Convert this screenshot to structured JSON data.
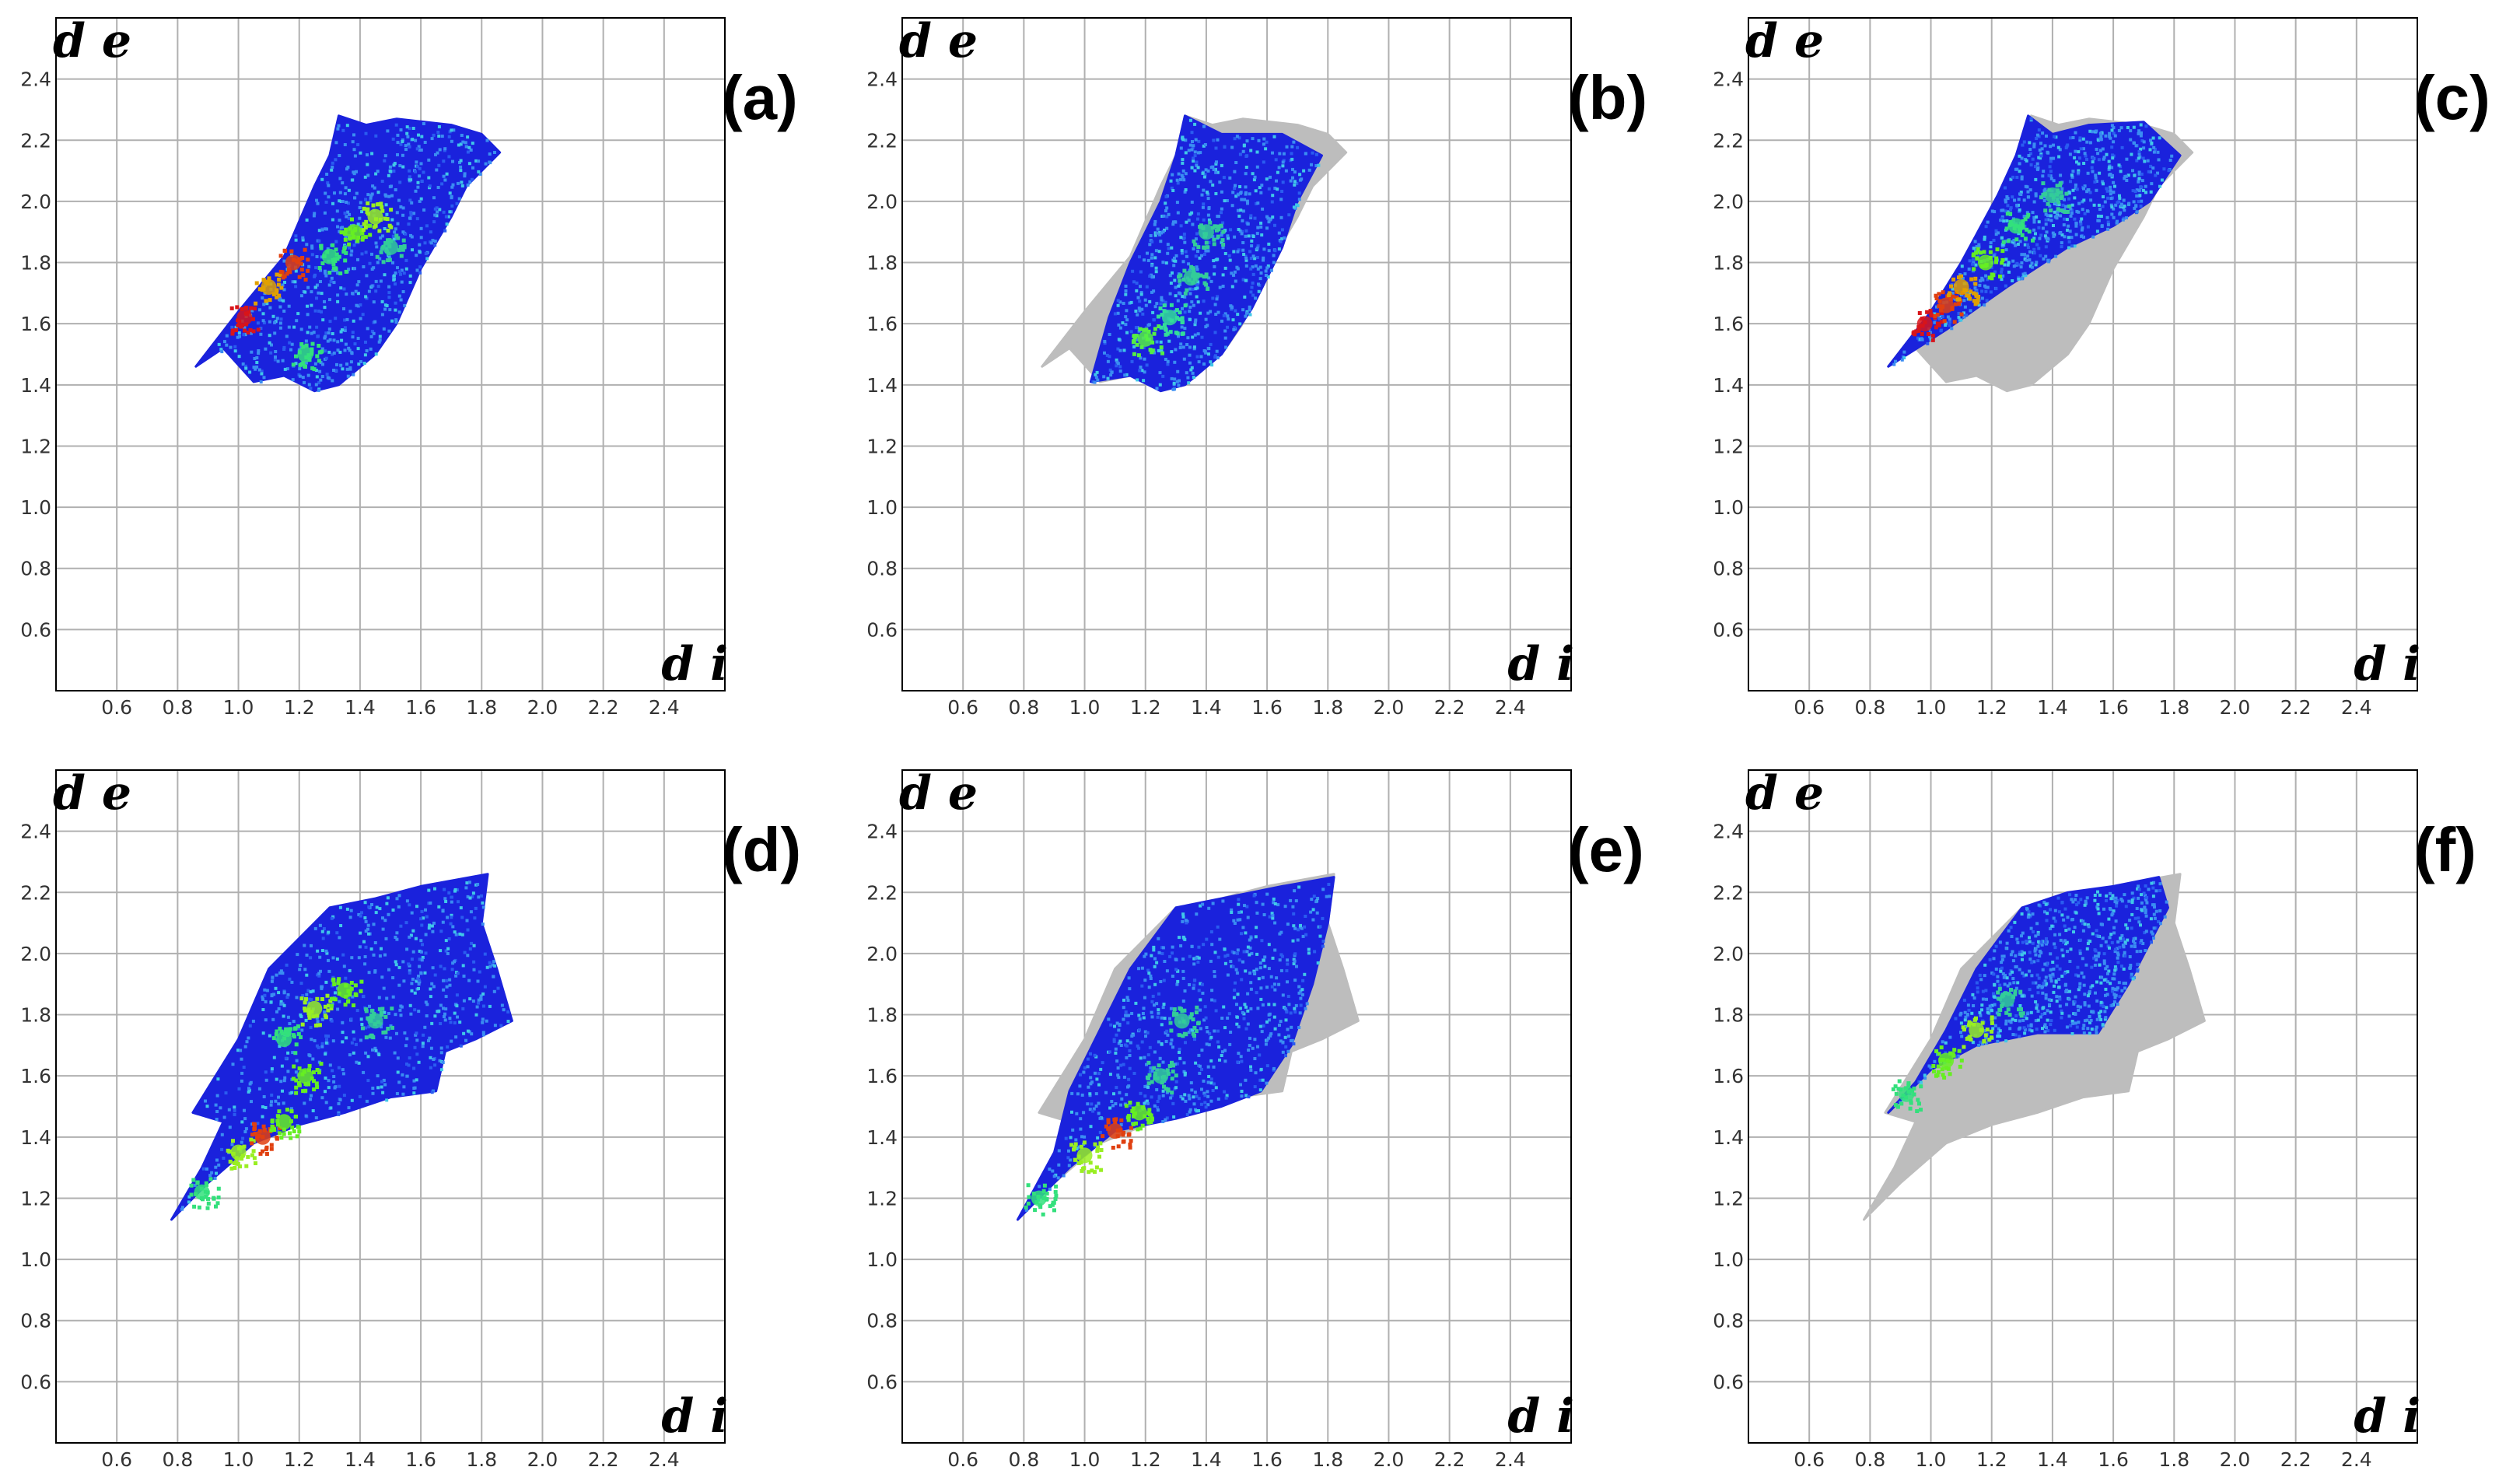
{
  "chart_data": [
    {
      "type": "scatter",
      "panel_label": "(a)",
      "xlabel": "d i",
      "ylabel": "d e",
      "xlim": [
        0.4,
        2.6
      ],
      "ylim": [
        0.4,
        2.6
      ],
      "x_ticks": [
        "0.6",
        "0.8",
        "1.0",
        "1.2",
        "1.4",
        "1.6",
        "1.8",
        "2.0",
        "2.2",
        "2.4"
      ],
      "y_ticks": [
        "0.6",
        "0.8",
        "1.0",
        "1.2",
        "1.4",
        "1.6",
        "1.8",
        "2.0",
        "2.2",
        "2.4"
      ],
      "grid": true,
      "background_region": [],
      "highlight_region": [
        [
          0.86,
          1.46
        ],
        [
          0.95,
          1.52
        ],
        [
          1.05,
          1.41
        ],
        [
          1.15,
          1.43
        ],
        [
          1.25,
          1.38
        ],
        [
          1.33,
          1.4
        ],
        [
          1.45,
          1.5
        ],
        [
          1.52,
          1.6
        ],
        [
          1.6,
          1.78
        ],
        [
          1.7,
          1.95
        ],
        [
          1.75,
          2.05
        ],
        [
          1.86,
          2.16
        ],
        [
          1.8,
          2.22
        ],
        [
          1.7,
          2.25
        ],
        [
          1.52,
          2.27
        ],
        [
          1.42,
          2.25
        ],
        [
          1.33,
          2.28
        ],
        [
          1.3,
          2.15
        ],
        [
          1.25,
          2.05
        ],
        [
          1.15,
          1.82
        ],
        [
          1.0,
          1.64
        ]
      ],
      "hotspots": [
        [
          1.02,
          1.62,
          "#d8141a"
        ],
        [
          1.1,
          1.72,
          "#e0a000"
        ],
        [
          1.18,
          1.8,
          "#e04010"
        ],
        [
          1.38,
          1.9,
          "#66ee22"
        ],
        [
          1.45,
          1.95,
          "#99ee22"
        ],
        [
          1.3,
          1.82,
          "#33e07c"
        ],
        [
          1.22,
          1.5,
          "#33e07c"
        ],
        [
          1.5,
          1.85,
          "#33cc99"
        ]
      ]
    },
    {
      "type": "scatter",
      "panel_label": "(b)",
      "xlabel": "d i",
      "ylabel": "d e",
      "xlim": [
        0.4,
        2.6
      ],
      "ylim": [
        0.4,
        2.6
      ],
      "x_ticks": [
        "0.6",
        "0.8",
        "1.0",
        "1.2",
        "1.4",
        "1.6",
        "1.8",
        "2.0",
        "2.2",
        "2.4"
      ],
      "y_ticks": [
        "0.6",
        "0.8",
        "1.0",
        "1.2",
        "1.4",
        "1.6",
        "1.8",
        "2.0",
        "2.2",
        "2.4"
      ],
      "grid": true,
      "background_region": [
        [
          0.86,
          1.46
        ],
        [
          0.95,
          1.52
        ],
        [
          1.05,
          1.41
        ],
        [
          1.15,
          1.43
        ],
        [
          1.25,
          1.38
        ],
        [
          1.33,
          1.4
        ],
        [
          1.45,
          1.5
        ],
        [
          1.52,
          1.6
        ],
        [
          1.6,
          1.78
        ],
        [
          1.7,
          1.95
        ],
        [
          1.75,
          2.05
        ],
        [
          1.86,
          2.16
        ],
        [
          1.8,
          2.22
        ],
        [
          1.7,
          2.25
        ],
        [
          1.52,
          2.27
        ],
        [
          1.42,
          2.25
        ],
        [
          1.33,
          2.28
        ],
        [
          1.3,
          2.15
        ],
        [
          1.25,
          2.05
        ],
        [
          1.15,
          1.82
        ],
        [
          1.0,
          1.64
        ]
      ],
      "highlight_region": [
        [
          1.02,
          1.41
        ],
        [
          1.15,
          1.43
        ],
        [
          1.25,
          1.38
        ],
        [
          1.33,
          1.4
        ],
        [
          1.45,
          1.5
        ],
        [
          1.55,
          1.65
        ],
        [
          1.65,
          1.85
        ],
        [
          1.7,
          2.0
        ],
        [
          1.78,
          2.15
        ],
        [
          1.65,
          2.22
        ],
        [
          1.45,
          2.22
        ],
        [
          1.33,
          2.28
        ],
        [
          1.3,
          2.15
        ],
        [
          1.25,
          2.0
        ],
        [
          1.15,
          1.8
        ],
        [
          1.08,
          1.62
        ]
      ],
      "hotspots": [
        [
          1.2,
          1.55,
          "#55ee44"
        ],
        [
          1.28,
          1.62,
          "#33dd99"
        ],
        [
          1.35,
          1.75,
          "#33cc99"
        ],
        [
          1.4,
          1.9,
          "#33cc99"
        ]
      ]
    },
    {
      "type": "scatter",
      "panel_label": "(c)",
      "xlabel": "d i",
      "ylabel": "d e",
      "xlim": [
        0.4,
        2.6
      ],
      "ylim": [
        0.4,
        2.6
      ],
      "x_ticks": [
        "0.6",
        "0.8",
        "1.0",
        "1.2",
        "1.4",
        "1.6",
        "1.8",
        "2.0",
        "2.2",
        "2.4"
      ],
      "y_ticks": [
        "0.6",
        "0.8",
        "1.0",
        "1.2",
        "1.4",
        "1.6",
        "1.8",
        "2.0",
        "2.2",
        "2.4"
      ],
      "grid": true,
      "background_region": [
        [
          0.86,
          1.46
        ],
        [
          0.95,
          1.52
        ],
        [
          1.05,
          1.41
        ],
        [
          1.15,
          1.43
        ],
        [
          1.25,
          1.38
        ],
        [
          1.33,
          1.4
        ],
        [
          1.45,
          1.5
        ],
        [
          1.52,
          1.6
        ],
        [
          1.6,
          1.78
        ],
        [
          1.7,
          1.95
        ],
        [
          1.75,
          2.05
        ],
        [
          1.86,
          2.16
        ],
        [
          1.8,
          2.22
        ],
        [
          1.7,
          2.25
        ],
        [
          1.52,
          2.27
        ],
        [
          1.42,
          2.25
        ],
        [
          1.33,
          2.28
        ],
        [
          1.3,
          2.15
        ],
        [
          1.25,
          2.05
        ],
        [
          1.15,
          1.82
        ],
        [
          1.0,
          1.64
        ]
      ],
      "highlight_region": [
        [
          0.86,
          1.46
        ],
        [
          1.05,
          1.58
        ],
        [
          1.25,
          1.72
        ],
        [
          1.45,
          1.85
        ],
        [
          1.6,
          1.92
        ],
        [
          1.72,
          2.0
        ],
        [
          1.82,
          2.15
        ],
        [
          1.7,
          2.26
        ],
        [
          1.52,
          2.25
        ],
        [
          1.4,
          2.22
        ],
        [
          1.32,
          2.28
        ],
        [
          1.28,
          2.15
        ],
        [
          1.22,
          2.02
        ],
        [
          1.1,
          1.8
        ],
        [
          1.0,
          1.64
        ]
      ],
      "hotspots": [
        [
          0.98,
          1.6,
          "#d8141a"
        ],
        [
          1.05,
          1.66,
          "#e04010"
        ],
        [
          1.1,
          1.72,
          "#e0a000"
        ],
        [
          1.18,
          1.8,
          "#66ee22"
        ],
        [
          1.28,
          1.92,
          "#33e07c"
        ],
        [
          1.4,
          2.02,
          "#33cc99"
        ]
      ]
    },
    {
      "type": "scatter",
      "panel_label": "(d)",
      "xlabel": "d i",
      "ylabel": "d e",
      "xlim": [
        0.4,
        2.6
      ],
      "ylim": [
        0.4,
        2.6
      ],
      "x_ticks": [
        "0.6",
        "0.8",
        "1.0",
        "1.2",
        "1.4",
        "1.6",
        "1.8",
        "2.0",
        "2.2",
        "2.4"
      ],
      "y_ticks": [
        "0.6",
        "0.8",
        "1.0",
        "1.2",
        "1.4",
        "1.6",
        "1.8",
        "2.0",
        "2.2",
        "2.4"
      ],
      "grid": true,
      "background_region": [],
      "highlight_region": [
        [
          0.78,
          1.13
        ],
        [
          0.9,
          1.25
        ],
        [
          1.05,
          1.38
        ],
        [
          1.2,
          1.44
        ],
        [
          1.35,
          1.48
        ],
        [
          1.5,
          1.53
        ],
        [
          1.65,
          1.55
        ],
        [
          1.68,
          1.68
        ],
        [
          1.78,
          1.72
        ],
        [
          1.9,
          1.78
        ],
        [
          1.85,
          1.95
        ],
        [
          1.8,
          2.1
        ],
        [
          1.82,
          2.26
        ],
        [
          1.6,
          2.22
        ],
        [
          1.45,
          2.18
        ],
        [
          1.3,
          2.15
        ],
        [
          1.1,
          1.95
        ],
        [
          1.0,
          1.72
        ],
        [
          0.85,
          1.48
        ],
        [
          0.95,
          1.45
        ],
        [
          0.88,
          1.3
        ]
      ],
      "hotspots": [
        [
          0.88,
          1.22,
          "#33e07c"
        ],
        [
          1.0,
          1.35,
          "#99ee22"
        ],
        [
          1.08,
          1.4,
          "#e04010"
        ],
        [
          1.15,
          1.45,
          "#66ee22"
        ],
        [
          1.22,
          1.6,
          "#66ee22"
        ],
        [
          1.25,
          1.82,
          "#99ee22"
        ],
        [
          1.35,
          1.88,
          "#66ee22"
        ],
        [
          1.15,
          1.72,
          "#33e07c"
        ],
        [
          1.45,
          1.78,
          "#33cc99"
        ]
      ]
    },
    {
      "type": "scatter",
      "panel_label": "(e)",
      "xlabel": "d i",
      "ylabel": "d e",
      "xlim": [
        0.4,
        2.6
      ],
      "ylim": [
        0.4,
        2.6
      ],
      "x_ticks": [
        "0.6",
        "0.8",
        "1.0",
        "1.2",
        "1.4",
        "1.6",
        "1.8",
        "2.0",
        "2.2",
        "2.4"
      ],
      "y_ticks": [
        "0.6",
        "0.8",
        "1.0",
        "1.2",
        "1.4",
        "1.6",
        "1.8",
        "2.0",
        "2.2",
        "2.4"
      ],
      "grid": true,
      "background_region": [
        [
          0.78,
          1.13
        ],
        [
          0.9,
          1.25
        ],
        [
          1.05,
          1.38
        ],
        [
          1.2,
          1.44
        ],
        [
          1.35,
          1.48
        ],
        [
          1.5,
          1.53
        ],
        [
          1.65,
          1.55
        ],
        [
          1.68,
          1.68
        ],
        [
          1.78,
          1.72
        ],
        [
          1.9,
          1.78
        ],
        [
          1.85,
          1.95
        ],
        [
          1.8,
          2.1
        ],
        [
          1.82,
          2.26
        ],
        [
          1.6,
          2.22
        ],
        [
          1.45,
          2.18
        ],
        [
          1.3,
          2.15
        ],
        [
          1.1,
          1.95
        ],
        [
          1.0,
          1.72
        ],
        [
          0.85,
          1.48
        ],
        [
          0.95,
          1.45
        ],
        [
          0.88,
          1.3
        ]
      ],
      "highlight_region": [
        [
          0.78,
          1.13
        ],
        [
          0.95,
          1.3
        ],
        [
          1.1,
          1.42
        ],
        [
          1.3,
          1.46
        ],
        [
          1.45,
          1.5
        ],
        [
          1.58,
          1.55
        ],
        [
          1.68,
          1.7
        ],
        [
          1.75,
          1.9
        ],
        [
          1.8,
          2.1
        ],
        [
          1.82,
          2.25
        ],
        [
          1.65,
          2.22
        ],
        [
          1.45,
          2.18
        ],
        [
          1.3,
          2.15
        ],
        [
          1.15,
          1.95
        ],
        [
          1.05,
          1.75
        ],
        [
          0.95,
          1.55
        ],
        [
          0.9,
          1.35
        ]
      ],
      "hotspots": [
        [
          0.85,
          1.2,
          "#33e07c"
        ],
        [
          1.0,
          1.34,
          "#99ee22"
        ],
        [
          1.1,
          1.42,
          "#e04010"
        ],
        [
          1.18,
          1.48,
          "#66ee22"
        ],
        [
          1.25,
          1.6,
          "#33cc99"
        ],
        [
          1.32,
          1.78,
          "#33cc99"
        ]
      ]
    },
    {
      "type": "scatter",
      "panel_label": "(f)",
      "xlabel": "d i",
      "ylabel": "d e",
      "xlim": [
        0.4,
        2.6
      ],
      "ylim": [
        0.4,
        2.6
      ],
      "x_ticks": [
        "0.6",
        "0.8",
        "1.0",
        "1.2",
        "1.4",
        "1.6",
        "1.8",
        "2.0",
        "2.2",
        "2.4"
      ],
      "y_ticks": [
        "0.6",
        "0.8",
        "1.0",
        "1.2",
        "1.4",
        "1.6",
        "1.8",
        "2.0",
        "2.2",
        "2.4"
      ],
      "grid": true,
      "background_region": [
        [
          0.78,
          1.13
        ],
        [
          0.9,
          1.25
        ],
        [
          1.05,
          1.38
        ],
        [
          1.2,
          1.44
        ],
        [
          1.35,
          1.48
        ],
        [
          1.5,
          1.53
        ],
        [
          1.65,
          1.55
        ],
        [
          1.68,
          1.68
        ],
        [
          1.78,
          1.72
        ],
        [
          1.9,
          1.78
        ],
        [
          1.85,
          1.95
        ],
        [
          1.8,
          2.1
        ],
        [
          1.82,
          2.26
        ],
        [
          1.6,
          2.22
        ],
        [
          1.45,
          2.18
        ],
        [
          1.3,
          2.15
        ],
        [
          1.1,
          1.95
        ],
        [
          1.0,
          1.72
        ],
        [
          0.85,
          1.48
        ],
        [
          0.95,
          1.45
        ],
        [
          0.88,
          1.3
        ]
      ],
      "highlight_region": [
        [
          0.86,
          1.48
        ],
        [
          1.0,
          1.62
        ],
        [
          1.15,
          1.7
        ],
        [
          1.35,
          1.74
        ],
        [
          1.55,
          1.74
        ],
        [
          1.65,
          1.9
        ],
        [
          1.78,
          2.15
        ],
        [
          1.75,
          2.25
        ],
        [
          1.6,
          2.22
        ],
        [
          1.45,
          2.2
        ],
        [
          1.3,
          2.15
        ],
        [
          1.15,
          1.95
        ],
        [
          1.05,
          1.75
        ],
        [
          0.95,
          1.58
        ]
      ],
      "hotspots": [
        [
          0.92,
          1.54,
          "#33e07c"
        ],
        [
          1.05,
          1.65,
          "#66ee22"
        ],
        [
          1.15,
          1.75,
          "#99ee22"
        ],
        [
          1.25,
          1.85,
          "#33cc99"
        ]
      ]
    }
  ]
}
